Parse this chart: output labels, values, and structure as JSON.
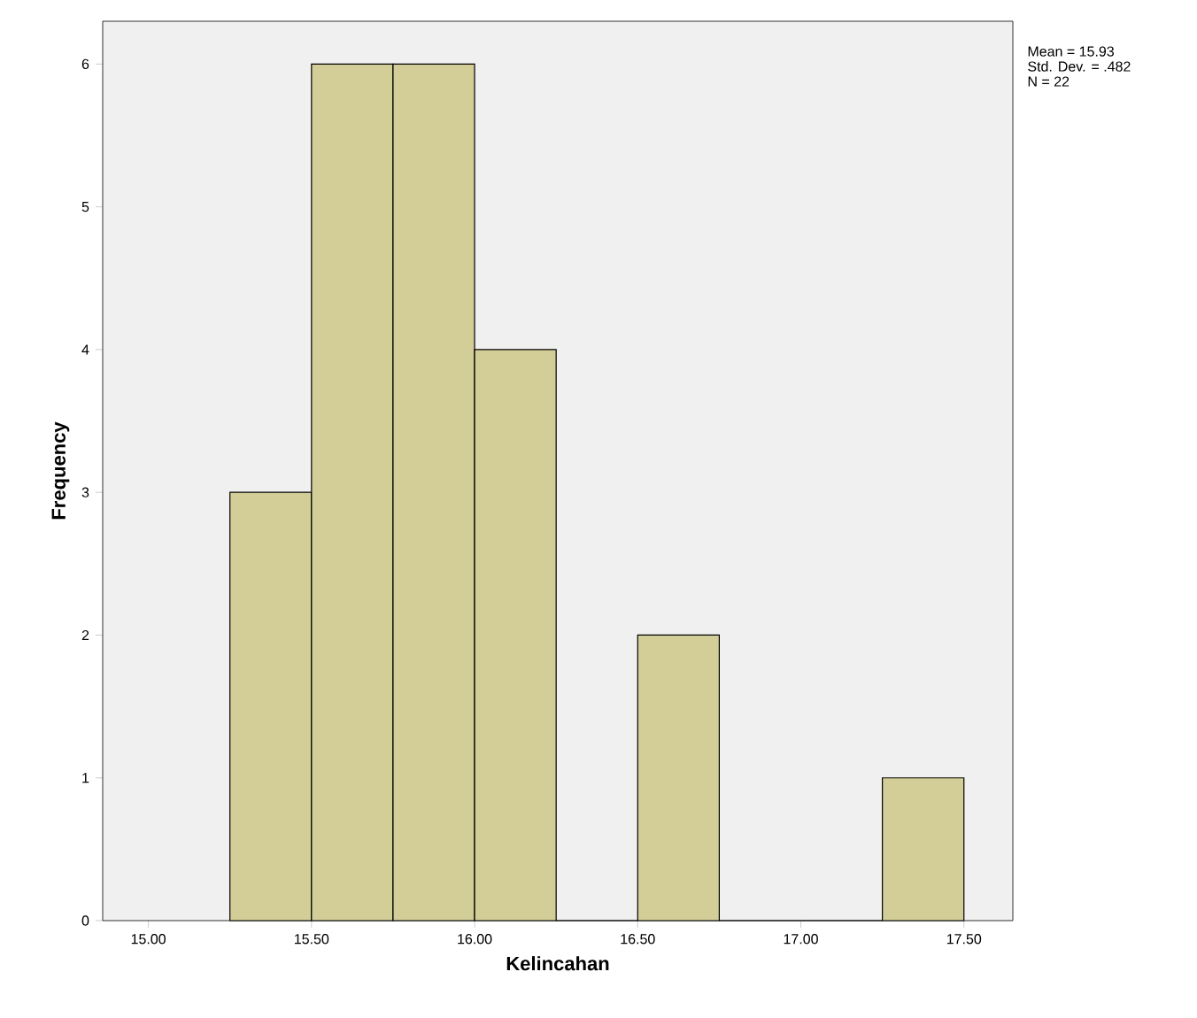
{
  "chart_data": {
    "type": "histogram",
    "xlabel": "Kelincahan",
    "ylabel": "Frequency",
    "bins": [
      15.25,
      15.5,
      15.75,
      16.0,
      16.25,
      16.5,
      16.75,
      17.0,
      17.25,
      17.5
    ],
    "values": [
      3,
      6,
      6,
      4,
      0,
      2,
      0,
      0,
      1
    ],
    "color": "#d3ce97",
    "xlim": [
      14.86,
      17.65
    ],
    "ylim": [
      0,
      6.3
    ],
    "xticks": [
      {
        "value": 15,
        "label": "15.00"
      },
      {
        "value": 15.5,
        "label": "15.50"
      },
      {
        "value": 16,
        "label": "16.00"
      },
      {
        "value": 16.5,
        "label": "16.50"
      },
      {
        "value": 17,
        "label": "17.00"
      },
      {
        "value": 17.5,
        "label": "17.50"
      }
    ],
    "yticks": [
      0,
      1,
      2,
      3,
      4,
      5,
      6
    ],
    "annotations": [
      "Mean = 15.93",
      "Std. Dev. = .482",
      "N = 22"
    ]
  }
}
